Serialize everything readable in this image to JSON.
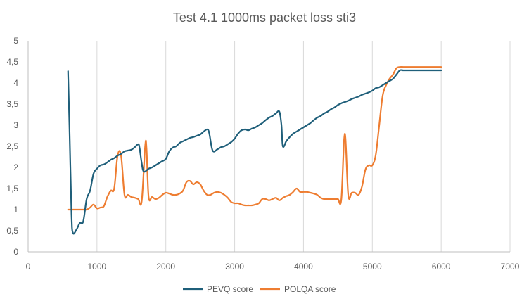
{
  "chart_data": {
    "type": "line",
    "title": "Test 4.1 1000ms packet loss sti3",
    "xlabel": "",
    "ylabel": "",
    "xlim": [
      0,
      7000
    ],
    "ylim": [
      0,
      5
    ],
    "x_ticks": [
      0,
      1000,
      2000,
      3000,
      4000,
      5000,
      6000,
      7000
    ],
    "y_ticks": [
      0,
      0.5,
      1,
      1.5,
      2,
      2.5,
      3,
      3.5,
      4,
      4.5,
      5
    ],
    "y_tick_labels": [
      "0",
      "0,5",
      "1",
      "1,5",
      "2",
      "2,5",
      "3",
      "3,5",
      "4",
      "4,5",
      "5"
    ],
    "grid": "vertical",
    "legend_position": "bottom",
    "series": [
      {
        "name": "PEVQ score",
        "color": "#1f5f7a",
        "points": [
          [
            580,
            4.28
          ],
          [
            600,
            3.0
          ],
          [
            630,
            0.9
          ],
          [
            650,
            0.45
          ],
          [
            700,
            0.52
          ],
          [
            750,
            0.68
          ],
          [
            800,
            0.72
          ],
          [
            850,
            1.25
          ],
          [
            900,
            1.45
          ],
          [
            950,
            1.85
          ],
          [
            1000,
            1.97
          ],
          [
            1050,
            2.05
          ],
          [
            1100,
            2.07
          ],
          [
            1150,
            2.12
          ],
          [
            1200,
            2.18
          ],
          [
            1250,
            2.22
          ],
          [
            1300,
            2.28
          ],
          [
            1350,
            2.32
          ],
          [
            1400,
            2.38
          ],
          [
            1450,
            2.4
          ],
          [
            1500,
            2.42
          ],
          [
            1550,
            2.48
          ],
          [
            1600,
            2.55
          ],
          [
            1620,
            2.45
          ],
          [
            1650,
            2.1
          ],
          [
            1680,
            1.9
          ],
          [
            1750,
            1.97
          ],
          [
            1800,
            2.0
          ],
          [
            1850,
            2.05
          ],
          [
            1900,
            2.1
          ],
          [
            1950,
            2.15
          ],
          [
            2000,
            2.2
          ],
          [
            2050,
            2.38
          ],
          [
            2100,
            2.47
          ],
          [
            2150,
            2.5
          ],
          [
            2200,
            2.58
          ],
          [
            2250,
            2.62
          ],
          [
            2300,
            2.66
          ],
          [
            2350,
            2.7
          ],
          [
            2400,
            2.72
          ],
          [
            2450,
            2.75
          ],
          [
            2500,
            2.78
          ],
          [
            2550,
            2.85
          ],
          [
            2600,
            2.9
          ],
          [
            2630,
            2.82
          ],
          [
            2680,
            2.4
          ],
          [
            2750,
            2.43
          ],
          [
            2800,
            2.48
          ],
          [
            2850,
            2.5
          ],
          [
            2900,
            2.55
          ],
          [
            2950,
            2.6
          ],
          [
            3000,
            2.68
          ],
          [
            3050,
            2.8
          ],
          [
            3100,
            2.88
          ],
          [
            3150,
            2.9
          ],
          [
            3200,
            2.88
          ],
          [
            3250,
            2.92
          ],
          [
            3300,
            2.95
          ],
          [
            3350,
            3.0
          ],
          [
            3400,
            3.05
          ],
          [
            3450,
            3.12
          ],
          [
            3500,
            3.18
          ],
          [
            3550,
            3.22
          ],
          [
            3600,
            3.28
          ],
          [
            3650,
            3.32
          ],
          [
            3680,
            3.0
          ],
          [
            3700,
            2.5
          ],
          [
            3750,
            2.62
          ],
          [
            3800,
            2.72
          ],
          [
            3850,
            2.8
          ],
          [
            3900,
            2.85
          ],
          [
            3950,
            2.9
          ],
          [
            4000,
            2.95
          ],
          [
            4050,
            3.0
          ],
          [
            4100,
            3.05
          ],
          [
            4150,
            3.12
          ],
          [
            4200,
            3.18
          ],
          [
            4250,
            3.22
          ],
          [
            4300,
            3.28
          ],
          [
            4350,
            3.32
          ],
          [
            4400,
            3.38
          ],
          [
            4450,
            3.42
          ],
          [
            4500,
            3.48
          ],
          [
            4550,
            3.52
          ],
          [
            4600,
            3.55
          ],
          [
            4650,
            3.58
          ],
          [
            4700,
            3.62
          ],
          [
            4750,
            3.65
          ],
          [
            4800,
            3.68
          ],
          [
            4850,
            3.72
          ],
          [
            4900,
            3.75
          ],
          [
            4950,
            3.78
          ],
          [
            5000,
            3.82
          ],
          [
            5050,
            3.88
          ],
          [
            5100,
            3.9
          ],
          [
            5150,
            3.95
          ],
          [
            5200,
            4.0
          ],
          [
            5250,
            4.05
          ],
          [
            5300,
            4.1
          ],
          [
            5350,
            4.2
          ],
          [
            5400,
            4.3
          ],
          [
            5450,
            4.3
          ],
          [
            5500,
            4.3
          ],
          [
            5600,
            4.3
          ],
          [
            5700,
            4.3
          ],
          [
            5800,
            4.3
          ],
          [
            5900,
            4.3
          ],
          [
            6000,
            4.3
          ]
        ]
      },
      {
        "name": "POLQA score",
        "color": "#ee7d31",
        "points": [
          [
            580,
            1.0
          ],
          [
            650,
            1.0
          ],
          [
            700,
            1.0
          ],
          [
            750,
            1.0
          ],
          [
            800,
            1.0
          ],
          [
            850,
            1.0
          ],
          [
            900,
            1.05
          ],
          [
            950,
            1.12
          ],
          [
            1000,
            1.03
          ],
          [
            1050,
            1.05
          ],
          [
            1100,
            1.08
          ],
          [
            1150,
            1.3
          ],
          [
            1200,
            1.45
          ],
          [
            1250,
            1.5
          ],
          [
            1300,
            2.28
          ],
          [
            1350,
            2.28
          ],
          [
            1400,
            1.35
          ],
          [
            1450,
            1.35
          ],
          [
            1500,
            1.3
          ],
          [
            1550,
            1.28
          ],
          [
            1600,
            1.25
          ],
          [
            1650,
            1.2
          ],
          [
            1700,
            2.5
          ],
          [
            1720,
            2.45
          ],
          [
            1750,
            1.3
          ],
          [
            1800,
            1.3
          ],
          [
            1850,
            1.25
          ],
          [
            1900,
            1.28
          ],
          [
            1950,
            1.35
          ],
          [
            2000,
            1.4
          ],
          [
            2050,
            1.38
          ],
          [
            2100,
            1.35
          ],
          [
            2150,
            1.35
          ],
          [
            2200,
            1.38
          ],
          [
            2250,
            1.45
          ],
          [
            2300,
            1.65
          ],
          [
            2350,
            1.68
          ],
          [
            2400,
            1.6
          ],
          [
            2450,
            1.65
          ],
          [
            2500,
            1.6
          ],
          [
            2550,
            1.45
          ],
          [
            2600,
            1.35
          ],
          [
            2650,
            1.35
          ],
          [
            2700,
            1.4
          ],
          [
            2750,
            1.42
          ],
          [
            2800,
            1.4
          ],
          [
            2850,
            1.35
          ],
          [
            2900,
            1.28
          ],
          [
            2950,
            1.18
          ],
          [
            3000,
            1.15
          ],
          [
            3050,
            1.15
          ],
          [
            3100,
            1.12
          ],
          [
            3150,
            1.1
          ],
          [
            3200,
            1.1
          ],
          [
            3250,
            1.1
          ],
          [
            3300,
            1.12
          ],
          [
            3350,
            1.15
          ],
          [
            3400,
            1.25
          ],
          [
            3450,
            1.25
          ],
          [
            3500,
            1.22
          ],
          [
            3550,
            1.25
          ],
          [
            3600,
            1.28
          ],
          [
            3650,
            1.22
          ],
          [
            3700,
            1.28
          ],
          [
            3750,
            1.32
          ],
          [
            3800,
            1.35
          ],
          [
            3850,
            1.42
          ],
          [
            3900,
            1.5
          ],
          [
            3950,
            1.42
          ],
          [
            4000,
            1.42
          ],
          [
            4050,
            1.42
          ],
          [
            4100,
            1.4
          ],
          [
            4150,
            1.38
          ],
          [
            4200,
            1.35
          ],
          [
            4250,
            1.28
          ],
          [
            4300,
            1.25
          ],
          [
            4350,
            1.25
          ],
          [
            4400,
            1.25
          ],
          [
            4450,
            1.25
          ],
          [
            4500,
            1.25
          ],
          [
            4550,
            1.25
          ],
          [
            4600,
            2.8
          ],
          [
            4650,
            1.35
          ],
          [
            4700,
            1.4
          ],
          [
            4750,
            1.4
          ],
          [
            4800,
            1.35
          ],
          [
            4850,
            1.55
          ],
          [
            4900,
            1.95
          ],
          [
            4950,
            2.05
          ],
          [
            5000,
            2.05
          ],
          [
            5050,
            2.3
          ],
          [
            5100,
            3.0
          ],
          [
            5150,
            3.7
          ],
          [
            5200,
            3.95
          ],
          [
            5250,
            4.1
          ],
          [
            5300,
            4.2
          ],
          [
            5350,
            4.35
          ],
          [
            5400,
            4.38
          ],
          [
            5450,
            4.38
          ],
          [
            5500,
            4.38
          ],
          [
            5600,
            4.38
          ],
          [
            5700,
            4.38
          ],
          [
            5800,
            4.38
          ],
          [
            5900,
            4.38
          ],
          [
            6000,
            4.38
          ]
        ]
      }
    ]
  }
}
